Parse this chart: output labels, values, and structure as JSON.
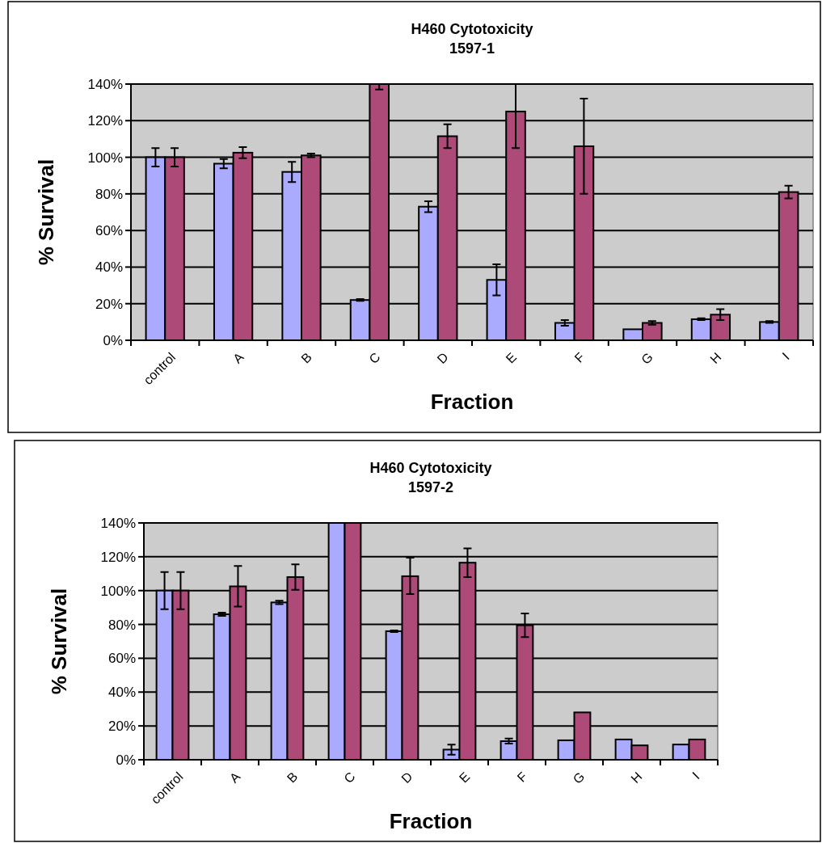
{
  "chart_data": [
    {
      "type": "bar",
      "title": "H460 Cytotoxicity",
      "subtitle": "1597-1",
      "xlabel": "Fraction",
      "ylabel": "% Survival",
      "categories": [
        "control",
        "A",
        "B",
        "C",
        "D",
        "E",
        "F",
        "G",
        "H",
        "I"
      ],
      "series": [
        {
          "color": "#aaaaff",
          "values": [
            100,
            96.5,
            92,
            22,
            73,
            33,
            9.5,
            6,
            11.5,
            10
          ],
          "errors": [
            5,
            2.5,
            5.5,
            0.5,
            3,
            8.5,
            1.5,
            null,
            0.5,
            0.5
          ]
        },
        {
          "color": "#ad4a78",
          "values": [
            100,
            102.5,
            101,
            140,
            111.5,
            125,
            106,
            9.5,
            14,
            81
          ],
          "errors": [
            5,
            3,
            1,
            [
              137,
              140
            ],
            6.5,
            [
              105,
              140
            ],
            26,
            1,
            3,
            3.5
          ]
        }
      ],
      "ylim": [
        0,
        140
      ],
      "yticks": [
        {
          "value": 0,
          "label": "0%"
        },
        {
          "value": 20,
          "label": "20%"
        },
        {
          "value": 40,
          "label": "40%"
        },
        {
          "value": 60,
          "label": "60%"
        },
        {
          "value": 80,
          "label": "80%"
        },
        {
          "value": 100,
          "label": "100%"
        },
        {
          "value": 120,
          "label": "120%"
        },
        {
          "value": 140,
          "label": "140%"
        }
      ],
      "grid": "y"
    },
    {
      "type": "bar",
      "title": "H460 Cytotoxicity",
      "subtitle": "1597-2",
      "xlabel": "Fraction",
      "ylabel": "% Survival",
      "categories": [
        "control",
        "A",
        "B",
        "C",
        "D",
        "E",
        "F",
        "G",
        "H",
        "I"
      ],
      "series": [
        {
          "color": "#aaaaff",
          "values": [
            100,
            86,
            93,
            140,
            76,
            6,
            11,
            11.5,
            12,
            9
          ],
          "errors": [
            11,
            1,
            1,
            null,
            0.5,
            3,
            1.5,
            null,
            null,
            null
          ]
        },
        {
          "color": "#ad4a78",
          "values": [
            100,
            102.5,
            108,
            140,
            108.5,
            116.5,
            79.5,
            28,
            8.5,
            12
          ],
          "errors": [
            11,
            12,
            7.5,
            null,
            [
              98,
              119.5
            ],
            [
              108,
              125
            ],
            7,
            null,
            null,
            null
          ]
        }
      ],
      "ylim": [
        0,
        140
      ],
      "yticks": [
        {
          "value": 0,
          "label": "0%"
        },
        {
          "value": 20,
          "label": "20%"
        },
        {
          "value": 40,
          "label": "40%"
        },
        {
          "value": 60,
          "label": "60%"
        },
        {
          "value": 80,
          "label": "80%"
        },
        {
          "value": 100,
          "label": "100%"
        },
        {
          "value": 120,
          "label": "120%"
        },
        {
          "value": 140,
          "label": "140%"
        }
      ],
      "grid": "y"
    }
  ]
}
